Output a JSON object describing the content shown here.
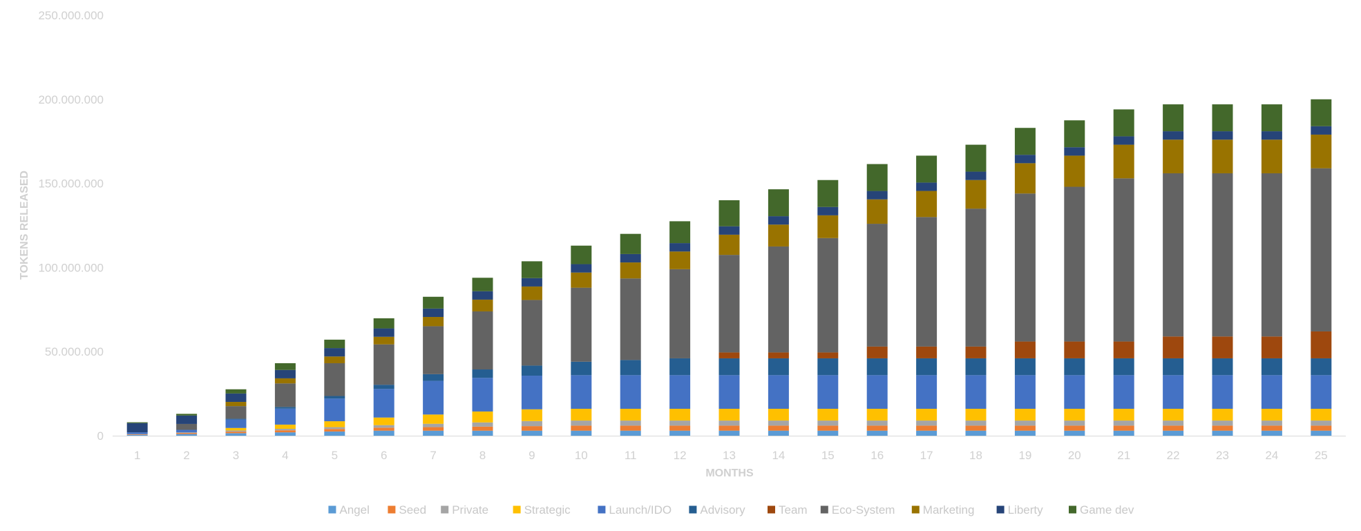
{
  "chart_data": {
    "type": "bar",
    "stacked": true,
    "xlabel": "MONTHS",
    "ylabel": "TOKENS RELEASED",
    "ylim": [
      0,
      250000000
    ],
    "yticks": [
      0,
      50000000,
      100000000,
      150000000,
      200000000,
      250000000
    ],
    "ytick_labels": [
      "0",
      "50.000.000",
      "100.000.000",
      "150.000.000",
      "200.000.000",
      "250.000.000"
    ],
    "grid": false,
    "legend_position": "bottom",
    "categories": [
      "1",
      "2",
      "3",
      "4",
      "5",
      "6",
      "7",
      "8",
      "9",
      "10",
      "11",
      "12",
      "13",
      "14",
      "15",
      "16",
      "17",
      "18",
      "19",
      "20",
      "21",
      "22",
      "23",
      "24",
      "25"
    ],
    "series": [
      {
        "name": "Angel",
        "color": "#5b9bd5",
        "values": [
          500000,
          1000000,
          1500000,
          2000000,
          2500000,
          3000000,
          3000000,
          3000000,
          3000000,
          3000000,
          3000000,
          3000000,
          3000000,
          3000000,
          3000000,
          3000000,
          3000000,
          3000000,
          3000000,
          3000000,
          3000000,
          3000000,
          3000000,
          3000000,
          3000000
        ]
      },
      {
        "name": "Seed",
        "color": "#ed7d31",
        "values": [
          300000,
          600000,
          900000,
          1200000,
          1500000,
          1800000,
          2100000,
          2400000,
          2700000,
          3000000,
          3000000,
          3000000,
          3000000,
          3000000,
          3000000,
          3000000,
          3000000,
          3000000,
          3000000,
          3000000,
          3000000,
          3000000,
          3000000,
          3000000,
          3000000
        ]
      },
      {
        "name": "Private",
        "color": "#a5a5a5",
        "values": [
          200000,
          400000,
          700000,
          900000,
          1100000,
          1500000,
          2000000,
          2500000,
          3000000,
          3000000,
          3000000,
          3000000,
          3000000,
          3000000,
          3000000,
          3000000,
          3000000,
          3000000,
          3000000,
          3000000,
          3000000,
          3000000,
          3000000,
          3000000,
          3000000
        ]
      },
      {
        "name": "Strategic",
        "color": "#ffc000",
        "values": [
          0,
          0,
          1500000,
          2500000,
          3500000,
          4500000,
          5500000,
          6500000,
          7000000,
          7000000,
          7000000,
          7000000,
          7000000,
          7000000,
          7000000,
          7000000,
          7000000,
          7000000,
          7000000,
          7000000,
          7000000,
          7000000,
          7000000,
          7000000,
          7000000
        ]
      },
      {
        "name": "Launch/IDO",
        "color": "#4472c4",
        "values": [
          1000000,
          1500000,
          5000000,
          9500000,
          13500000,
          17000000,
          20000000,
          20000000,
          20000000,
          20000000,
          20000000,
          20000000,
          20000000,
          20000000,
          20000000,
          20000000,
          20000000,
          20000000,
          20000000,
          20000000,
          20000000,
          20000000,
          20000000,
          20000000,
          20000000
        ]
      },
      {
        "name": "Advisory",
        "color": "#255e91",
        "values": [
          0,
          0,
          500000,
          1000000,
          1500000,
          2500000,
          4000000,
          5000000,
          6000000,
          8000000,
          9000000,
          10000000,
          10000000,
          10000000,
          10000000,
          10000000,
          10000000,
          10000000,
          10000000,
          10000000,
          10000000,
          10000000,
          10000000,
          10000000,
          10000000
        ]
      },
      {
        "name": "Team",
        "color": "#9e480e",
        "values": [
          0,
          0,
          0,
          0,
          0,
          0,
          0,
          0,
          0,
          0,
          0,
          0,
          3500000,
          3500000,
          3500000,
          7000000,
          7000000,
          7000000,
          10000000,
          10000000,
          10000000,
          13000000,
          13000000,
          13000000,
          16000000
        ]
      },
      {
        "name": "Eco-System",
        "color": "#636363",
        "values": [
          0,
          3500000,
          7500000,
          14000000,
          19500000,
          24000000,
          28500000,
          34500000,
          39000000,
          44000000,
          48500000,
          53000000,
          58000000,
          63000000,
          68000000,
          73000000,
          77000000,
          82000000,
          88000000,
          92000000,
          97000000,
          97000000,
          97000000,
          97000000,
          97000000
        ]
      },
      {
        "name": "Marketing",
        "color": "#997300",
        "values": [
          0,
          0,
          2500000,
          3000000,
          4000000,
          4500000,
          5500000,
          7000000,
          8000000,
          9000000,
          9500000,
          10500000,
          12000000,
          13000000,
          13500000,
          14500000,
          15500000,
          17000000,
          18000000,
          18500000,
          20000000,
          20000000,
          20000000,
          20000000,
          20000000
        ]
      },
      {
        "name": "Liberty",
        "color": "#264478",
        "values": [
          5500000,
          5000000,
          5000000,
          5000000,
          5000000,
          5000000,
          5000000,
          5000000,
          5000000,
          5000000,
          5000000,
          5000000,
          5000000,
          5000000,
          5000000,
          5000000,
          5000000,
          5000000,
          5000000,
          5000000,
          5000000,
          5000000,
          5000000,
          5000000,
          5000000
        ]
      },
      {
        "name": "Game dev",
        "color": "#43682b",
        "values": [
          500000,
          1000000,
          2500000,
          4000000,
          5000000,
          6000000,
          7000000,
          8000000,
          10000000,
          11000000,
          12000000,
          13000000,
          15500000,
          16000000,
          16000000,
          16000000,
          16000000,
          16000000,
          16000000,
          16000000,
          16000000,
          16000000,
          16000000,
          16000000,
          16000000
        ]
      }
    ]
  }
}
